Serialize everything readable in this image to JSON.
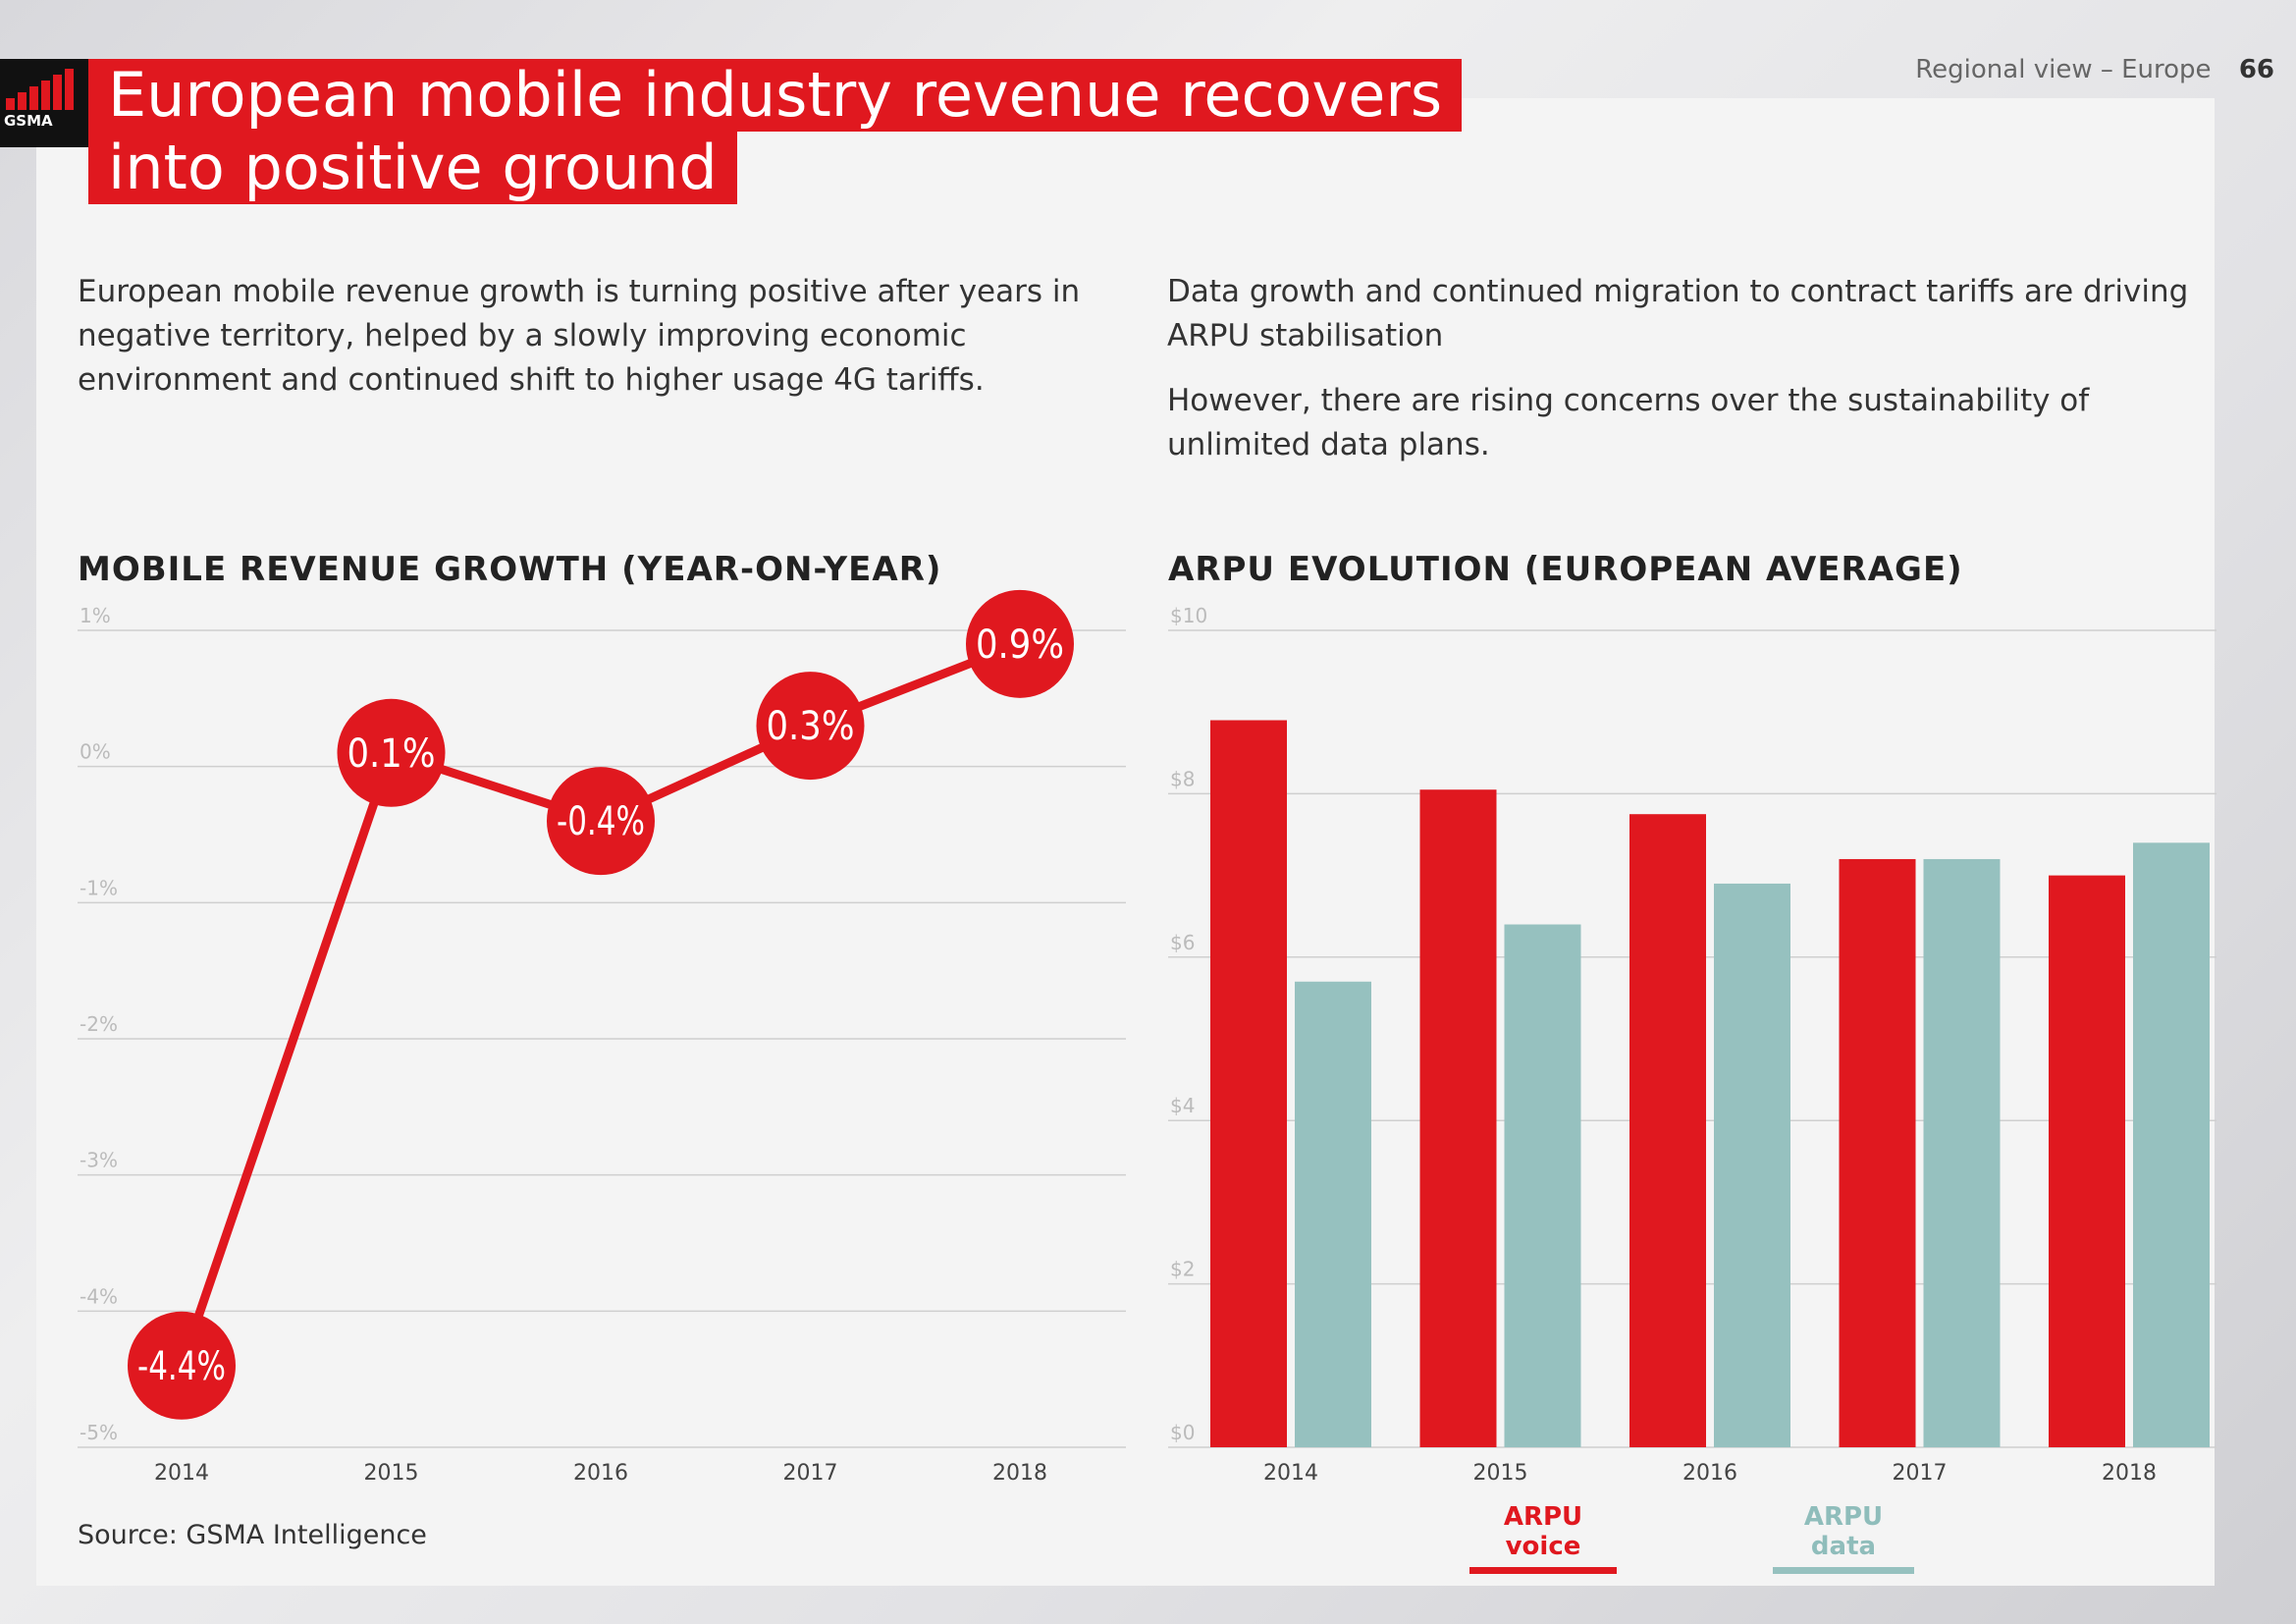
{
  "header": {
    "logo_text": "GSMA",
    "title_line1": "European mobile industry revenue recovers",
    "title_line2": "into positive ground",
    "section": "Regional view – Europe",
    "page_number": "66"
  },
  "intro": {
    "left_text": "European mobile revenue growth is turning positive after years in negative territory, helped by a slowly improving economic environment and continued shift to higher usage 4G tariffs.",
    "right_text1": "Data growth and continued migration to contract tariffs are driving ARPU stabilisation",
    "right_text2": "However, there are rising concerns over the sustainability of unlimited data plans."
  },
  "source": "Source: GSMA Intelligence",
  "colors": {
    "accent_red": "#e0181f",
    "teal": "#96c1bf",
    "grid": "#cfcfcf"
  },
  "chart_data": [
    {
      "type": "line",
      "title": "MOBILE REVENUE GROWTH (YEAR-ON-YEAR)",
      "categories": [
        "2014",
        "2015",
        "2016",
        "2017",
        "2018"
      ],
      "values": [
        -4.4,
        0.1,
        -0.4,
        0.3,
        0.9
      ],
      "data_labels": [
        "-4.4%",
        "0.1%",
        "-0.4%",
        "0.3%",
        "0.9%"
      ],
      "y_ticks": [
        1,
        0,
        -1,
        -2,
        -3,
        -4,
        -5
      ],
      "y_tick_labels": [
        "1%",
        "0%",
        "-1%",
        "-2%",
        "-3%",
        "-4%",
        "-5%"
      ],
      "ylim": [
        -5,
        1
      ],
      "grid": true
    },
    {
      "type": "bar",
      "title": "ARPU EVOLUTION (EUROPEAN AVERAGE)",
      "categories": [
        "2014",
        "2015",
        "2016",
        "2017",
        "2018"
      ],
      "series": [
        {
          "name": "ARPU voice",
          "values": [
            8.9,
            8.05,
            7.75,
            7.2,
            7.0
          ],
          "color": "#e0181f"
        },
        {
          "name": "ARPU data",
          "values": [
            5.7,
            6.4,
            6.9,
            7.2,
            7.4
          ],
          "color": "#96c1bf"
        }
      ],
      "y_ticks": [
        10,
        8,
        6,
        4,
        2,
        0
      ],
      "y_tick_labels": [
        "$10",
        "$8",
        "$6",
        "$4",
        "$2",
        "$0"
      ],
      "ylim": [
        0,
        10
      ],
      "grid": true,
      "legend_position": "bottom"
    }
  ]
}
